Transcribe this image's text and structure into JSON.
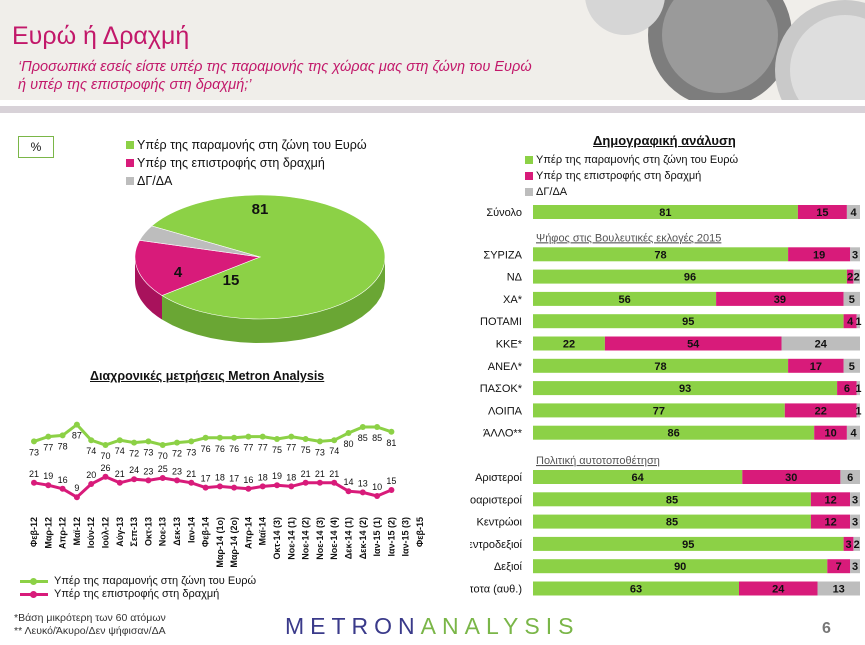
{
  "title": "Ευρώ ή Δραχμή",
  "subtitle": "‘Προσωπικά εσείς είστε υπέρ της παραμονής της χώρας μας στη ζώνη του Ευρώ ή υπέρ της επιστροφής στη δραχμή;’",
  "percent_label": "%",
  "colors": {
    "green": "#8cd146",
    "magenta": "#d81b7a",
    "gray": "#bdbdbd",
    "brand_pink": "#c2186a"
  },
  "legend_top": [
    "Υπέρ της παραμονής στη ζώνη του Ευρώ",
    "Υπέρ της επιστροφής στη δραχμή",
    "ΔΓ/ΔΑ"
  ],
  "right_section_title": "Δημογραφική ανάλυση",
  "legend_right": [
    "Υπέρ της παραμονής στη ζώνη του Ευρώ",
    "Υπέρ της επιστροφής στη δραχμή",
    "ΔΓ/ΔΑ"
  ],
  "trend_title": "Διαχρονικές μετρήσεις Metron Analysis",
  "trend_legend": [
    "Υπέρ της παραμονής στη ζώνη του Ευρώ",
    "Υπέρ της επιστροφής στη δραχμή"
  ],
  "footnote": [
    "*Βάση μικρότερη των 60 ατόμων",
    "** Λευκό/Άκυρο/Δεν ψήφισαν/ΔΑ"
  ],
  "logo": {
    "part1": "METRON",
    "part2": "ANALYSIS"
  },
  "page_number": "6",
  "chart_data": [
    {
      "type": "pie",
      "labels": [
        "Υπέρ της παραμονής στη ζώνη του Ευρώ",
        "Υπέρ της επιστροφής στη δραχμή",
        "ΔΓ/ΔΑ"
      ],
      "values": [
        81,
        15,
        4
      ]
    },
    {
      "type": "line",
      "title": "Διαχρονικές μετρήσεις Metron Analysis",
      "categories": [
        "Φεβ-12",
        "Μαρ-12",
        "Απρ-12",
        "Μαϊ-12",
        "Ιούν-12",
        "Ιούλ-12",
        "Αύγ-13",
        "Σεπ-13",
        "Οκτ-13",
        "Νοε-13",
        "Δεκ-13",
        "Ιαν-14",
        "Φεβ-14",
        "Μαρ-14 (1ο)",
        "Μαρ-14 (2ο)",
        "Απρ-14",
        "Μαϊ-14",
        "Οκτ-14 (3)",
        "Νοε-14 (1)",
        "Νοε-14 (2)",
        "Νοε-14 (3)",
        "Νοε-14 (4)",
        "Δεκ-14 (1)",
        "Δεκ-14 (2)",
        "Ιαν-15 (1)",
        "Ιαν-15 (2)",
        "Ιαν-15 (3)",
        "Φεβ-15"
      ],
      "series": [
        {
          "name": "Υπέρ της παραμονής στη ζώνη του Ευρώ",
          "values": [
            73,
            77,
            78,
            87,
            74,
            70,
            74,
            72,
            73,
            70,
            72,
            73,
            76,
            76,
            76,
            77,
            77,
            75,
            77,
            75,
            73,
            74,
            80,
            85,
            85,
            81,
            null,
            null
          ]
        },
        {
          "name": "Υπέρ της επιστροφής στη δραχμή",
          "values": [
            21,
            19,
            16,
            9,
            20,
            26,
            21,
            24,
            23,
            25,
            23,
            21,
            17,
            18,
            17,
            16,
            18,
            19,
            18,
            21,
            21,
            21,
            14,
            13,
            10,
            15,
            null,
            null
          ]
        }
      ]
    },
    {
      "type": "bar",
      "stacked": true,
      "title": "Δημογραφική ανάλυση",
      "groups": [
        {
          "title": "",
          "rows": [
            {
              "label": "Σύνολο",
              "values": [
                81,
                15,
                4
              ]
            }
          ]
        },
        {
          "title": "Ψήφος στις Βουλευτικές εκλογές 2015",
          "rows": [
            {
              "label": "ΣΥΡΙΖΑ",
              "values": [
                78,
                19,
                3
              ]
            },
            {
              "label": "ΝΔ",
              "values": [
                96,
                2,
                2
              ]
            },
            {
              "label": "ΧΑ*",
              "values": [
                56,
                39,
                5
              ]
            },
            {
              "label": "ΠΟΤΑΜΙ",
              "values": [
                95,
                4,
                1
              ]
            },
            {
              "label": "ΚΚΕ*",
              "values": [
                22,
                54,
                24
              ]
            },
            {
              "label": "ΑΝΕΛ*",
              "values": [
                78,
                17,
                5
              ]
            },
            {
              "label": "ΠΑΣΟΚ*",
              "values": [
                93,
                6,
                1
              ]
            },
            {
              "label": "ΛΟΙΠΑ",
              "values": [
                77,
                22,
                1
              ]
            },
            {
              "label": "ΆΛΛΟ**",
              "values": [
                86,
                10,
                4
              ]
            }
          ]
        },
        {
          "title": "Πολιτική αυτοτοποθέτηση",
          "rows": [
            {
              "label": "Αριστεροί",
              "values": [
                64,
                30,
                6
              ]
            },
            {
              "label": "Κεντροαριστεροί",
              "values": [
                85,
                12,
                3
              ]
            },
            {
              "label": "Κεντρώοι",
              "values": [
                85,
                12,
                3
              ]
            },
            {
              "label": "Κεντροδεξιοί",
              "values": [
                95,
                3,
                2
              ]
            },
            {
              "label": "Δεξιοί",
              "values": [
                90,
                7,
                3
              ]
            },
            {
              "label": "Τίποτα (αυθ.)",
              "values": [
                63,
                24,
                13
              ]
            }
          ]
        }
      ]
    }
  ]
}
